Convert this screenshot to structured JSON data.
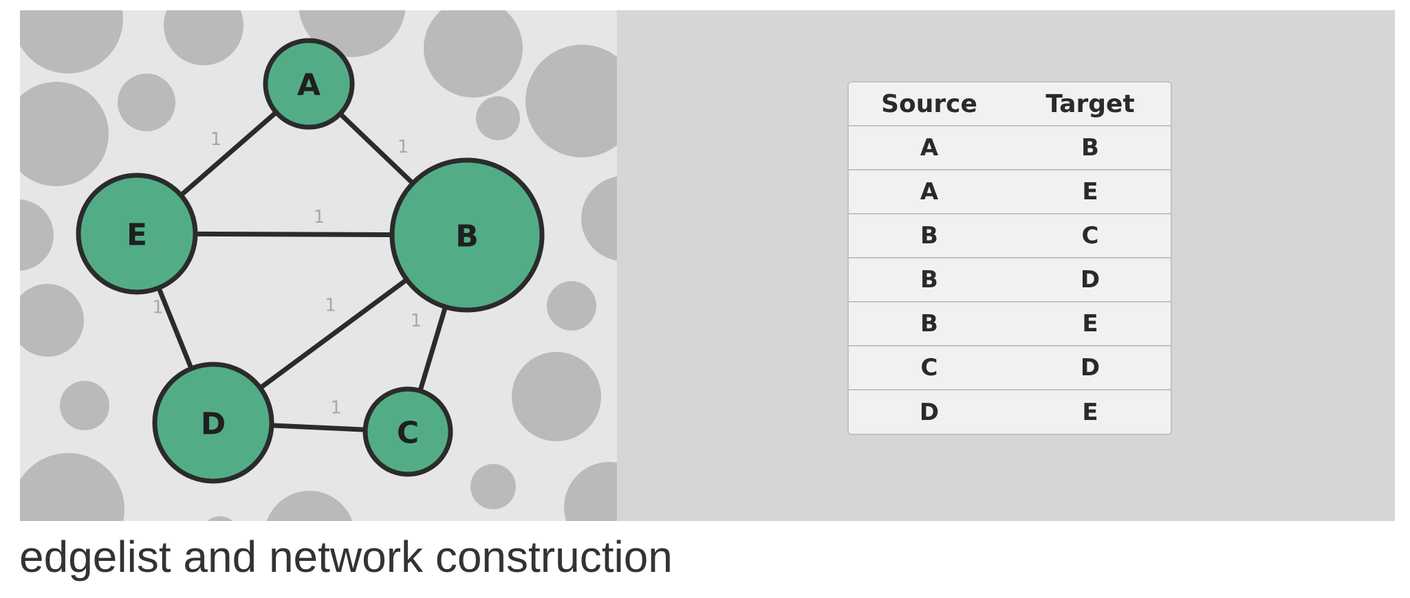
{
  "graph": {
    "nodes": [
      {
        "id": "A",
        "label": "A"
      },
      {
        "id": "B",
        "label": "B"
      },
      {
        "id": "C",
        "label": "C"
      },
      {
        "id": "D",
        "label": "D"
      },
      {
        "id": "E",
        "label": "E"
      }
    ],
    "edges": [
      {
        "source": "A",
        "target": "B",
        "weight": "1"
      },
      {
        "source": "A",
        "target": "E",
        "weight": "1"
      },
      {
        "source": "B",
        "target": "C",
        "weight": "1"
      },
      {
        "source": "B",
        "target": "D",
        "weight": "1"
      },
      {
        "source": "B",
        "target": "E",
        "weight": "1"
      },
      {
        "source": "C",
        "target": "D",
        "weight": "1"
      },
      {
        "source": "D",
        "target": "E",
        "weight": "1"
      }
    ],
    "colors": {
      "node_fill": "#52ad86",
      "edge": "#2b2b2b",
      "background": "#e6e6e6",
      "bubbles": "#bababa"
    }
  },
  "table": {
    "headers": {
      "source": "Source",
      "target": "Target"
    },
    "rows": [
      {
        "source": "A",
        "target": "B"
      },
      {
        "source": "A",
        "target": "E"
      },
      {
        "source": "B",
        "target": "C"
      },
      {
        "source": "B",
        "target": "D"
      },
      {
        "source": "B",
        "target": "E"
      },
      {
        "source": "C",
        "target": "D"
      },
      {
        "source": "D",
        "target": "E"
      }
    ]
  },
  "caption": "edgelist and network construction"
}
